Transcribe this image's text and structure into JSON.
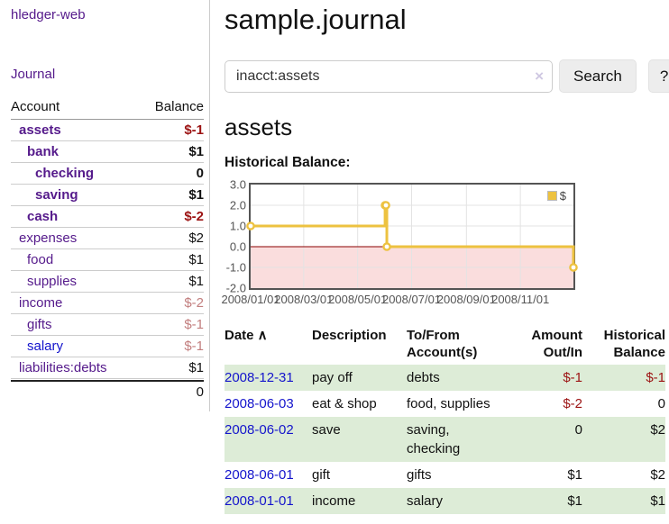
{
  "app": {
    "brand": "hledger-web",
    "nav": {
      "journal": "Journal"
    }
  },
  "sidebar": {
    "header": {
      "account": "Account",
      "balance": "Balance"
    },
    "accounts": [
      {
        "name": "assets",
        "level": 0,
        "bold": true,
        "balance": "$-1",
        "balance_style": "neg-strong"
      },
      {
        "name": "bank",
        "level": 1,
        "bold": true,
        "balance": "$1",
        "balance_style": "pos"
      },
      {
        "name": "checking",
        "level": 2,
        "bold": true,
        "balance": "0",
        "balance_style": "pos"
      },
      {
        "name": "saving",
        "level": 2,
        "bold": true,
        "balance": "$1",
        "balance_style": "pos"
      },
      {
        "name": "cash",
        "level": 1,
        "bold": true,
        "balance": "$-2",
        "balance_style": "neg-strong"
      },
      {
        "name": "expenses",
        "level": 0,
        "bold": false,
        "balance": "$2",
        "balance_style": "pos"
      },
      {
        "name": "food",
        "level": 1,
        "bold": false,
        "balance": "$1",
        "balance_style": "pos"
      },
      {
        "name": "supplies",
        "level": 1,
        "bold": false,
        "balance": "$1",
        "balance_style": "pos"
      },
      {
        "name": "income",
        "level": 0,
        "bold": false,
        "balance": "$-2",
        "balance_style": "neg-muted"
      },
      {
        "name": "gifts",
        "level": 1,
        "bold": false,
        "balance": "$-1",
        "balance_style": "neg-muted"
      },
      {
        "name": "salary",
        "level": 1,
        "bold": false,
        "link_color": "blue",
        "balance": "$-1",
        "balance_style": "neg-muted"
      },
      {
        "name": "liabilities:debts",
        "level": 0,
        "bold": false,
        "balance": "$1",
        "balance_style": "pos"
      }
    ],
    "total": "0"
  },
  "header": {
    "title": "sample.journal"
  },
  "search": {
    "value": "inacct:assets",
    "clear_icon": "×",
    "button_label": "Search",
    "help_label": "?"
  },
  "account_page": {
    "title": "assets",
    "chart_heading": "Historical Balance:"
  },
  "chart_data": {
    "type": "line",
    "title": "Historical Balance",
    "step": true,
    "xlim": [
      "2008-01-01",
      "2008-12-31"
    ],
    "ylim": [
      -2.0,
      3.0
    ],
    "y_ticks": [
      "3.0",
      "2.0",
      "1.0",
      "0.0",
      "-1.0",
      "-2.0"
    ],
    "x_ticks": [
      "2008/01/01",
      "2008/03/01",
      "2008/05/01",
      "2008/07/01",
      "2008/09/01",
      "2008/11/01"
    ],
    "series": [
      {
        "name": "$",
        "color": "#edc240",
        "points": [
          {
            "x": "2008-01-01",
            "y": 1
          },
          {
            "x": "2008-06-01",
            "y": 2
          },
          {
            "x": "2008-06-02",
            "y": 2
          },
          {
            "x": "2008-06-03",
            "y": 0
          },
          {
            "x": "2008-12-31",
            "y": -1
          }
        ]
      }
    ],
    "legend": {
      "position": "top-right",
      "label": "$",
      "swatch_color": "#edc240"
    },
    "grid": true,
    "gridline_color": "#e3e3e3",
    "zero_line_color": "#8b0000",
    "negative_region_fill": "#fadddd",
    "border_color": "#545454"
  },
  "register": {
    "columns": [
      {
        "label": "Date",
        "align": "left",
        "sort_icon": "∧"
      },
      {
        "label": "Description",
        "align": "left"
      },
      {
        "label": "To/From Account(s)",
        "align": "left"
      },
      {
        "label": "Amount Out/In",
        "align": "right"
      },
      {
        "label": "Historical Balance",
        "align": "right"
      }
    ],
    "rows": [
      {
        "date": "2008-12-31",
        "description": "pay off",
        "accounts": "debts",
        "amount": "$-1",
        "amount_negative": true,
        "balance": "$-1",
        "balance_negative": true,
        "shaded": true
      },
      {
        "date": "2008-06-03",
        "description": "eat & shop",
        "accounts": "food, supplies",
        "amount": "$-2",
        "amount_negative": true,
        "balance": "0",
        "balance_negative": false,
        "shaded": false
      },
      {
        "date": "2008-06-02",
        "description": "save",
        "accounts": "saving, checking",
        "amount": "0",
        "amount_negative": false,
        "balance": "$2",
        "balance_negative": false,
        "shaded": true
      },
      {
        "date": "2008-06-01",
        "description": "gift",
        "accounts": "gifts",
        "amount": "$1",
        "amount_negative": false,
        "balance": "$2",
        "balance_negative": false,
        "shaded": false
      },
      {
        "date": "2008-01-01",
        "description": "income",
        "accounts": "salary",
        "amount": "$1",
        "amount_negative": false,
        "balance": "$1",
        "balance_negative": false,
        "shaded": true
      }
    ]
  },
  "colors": {
    "link_purple": "#551a8b",
    "link_blue": "#1414cc",
    "negative_strong": "#9c1313",
    "negative_muted": "#c27e7e",
    "row_shade_green": "#ddecd7",
    "series_gold": "#edc240"
  }
}
